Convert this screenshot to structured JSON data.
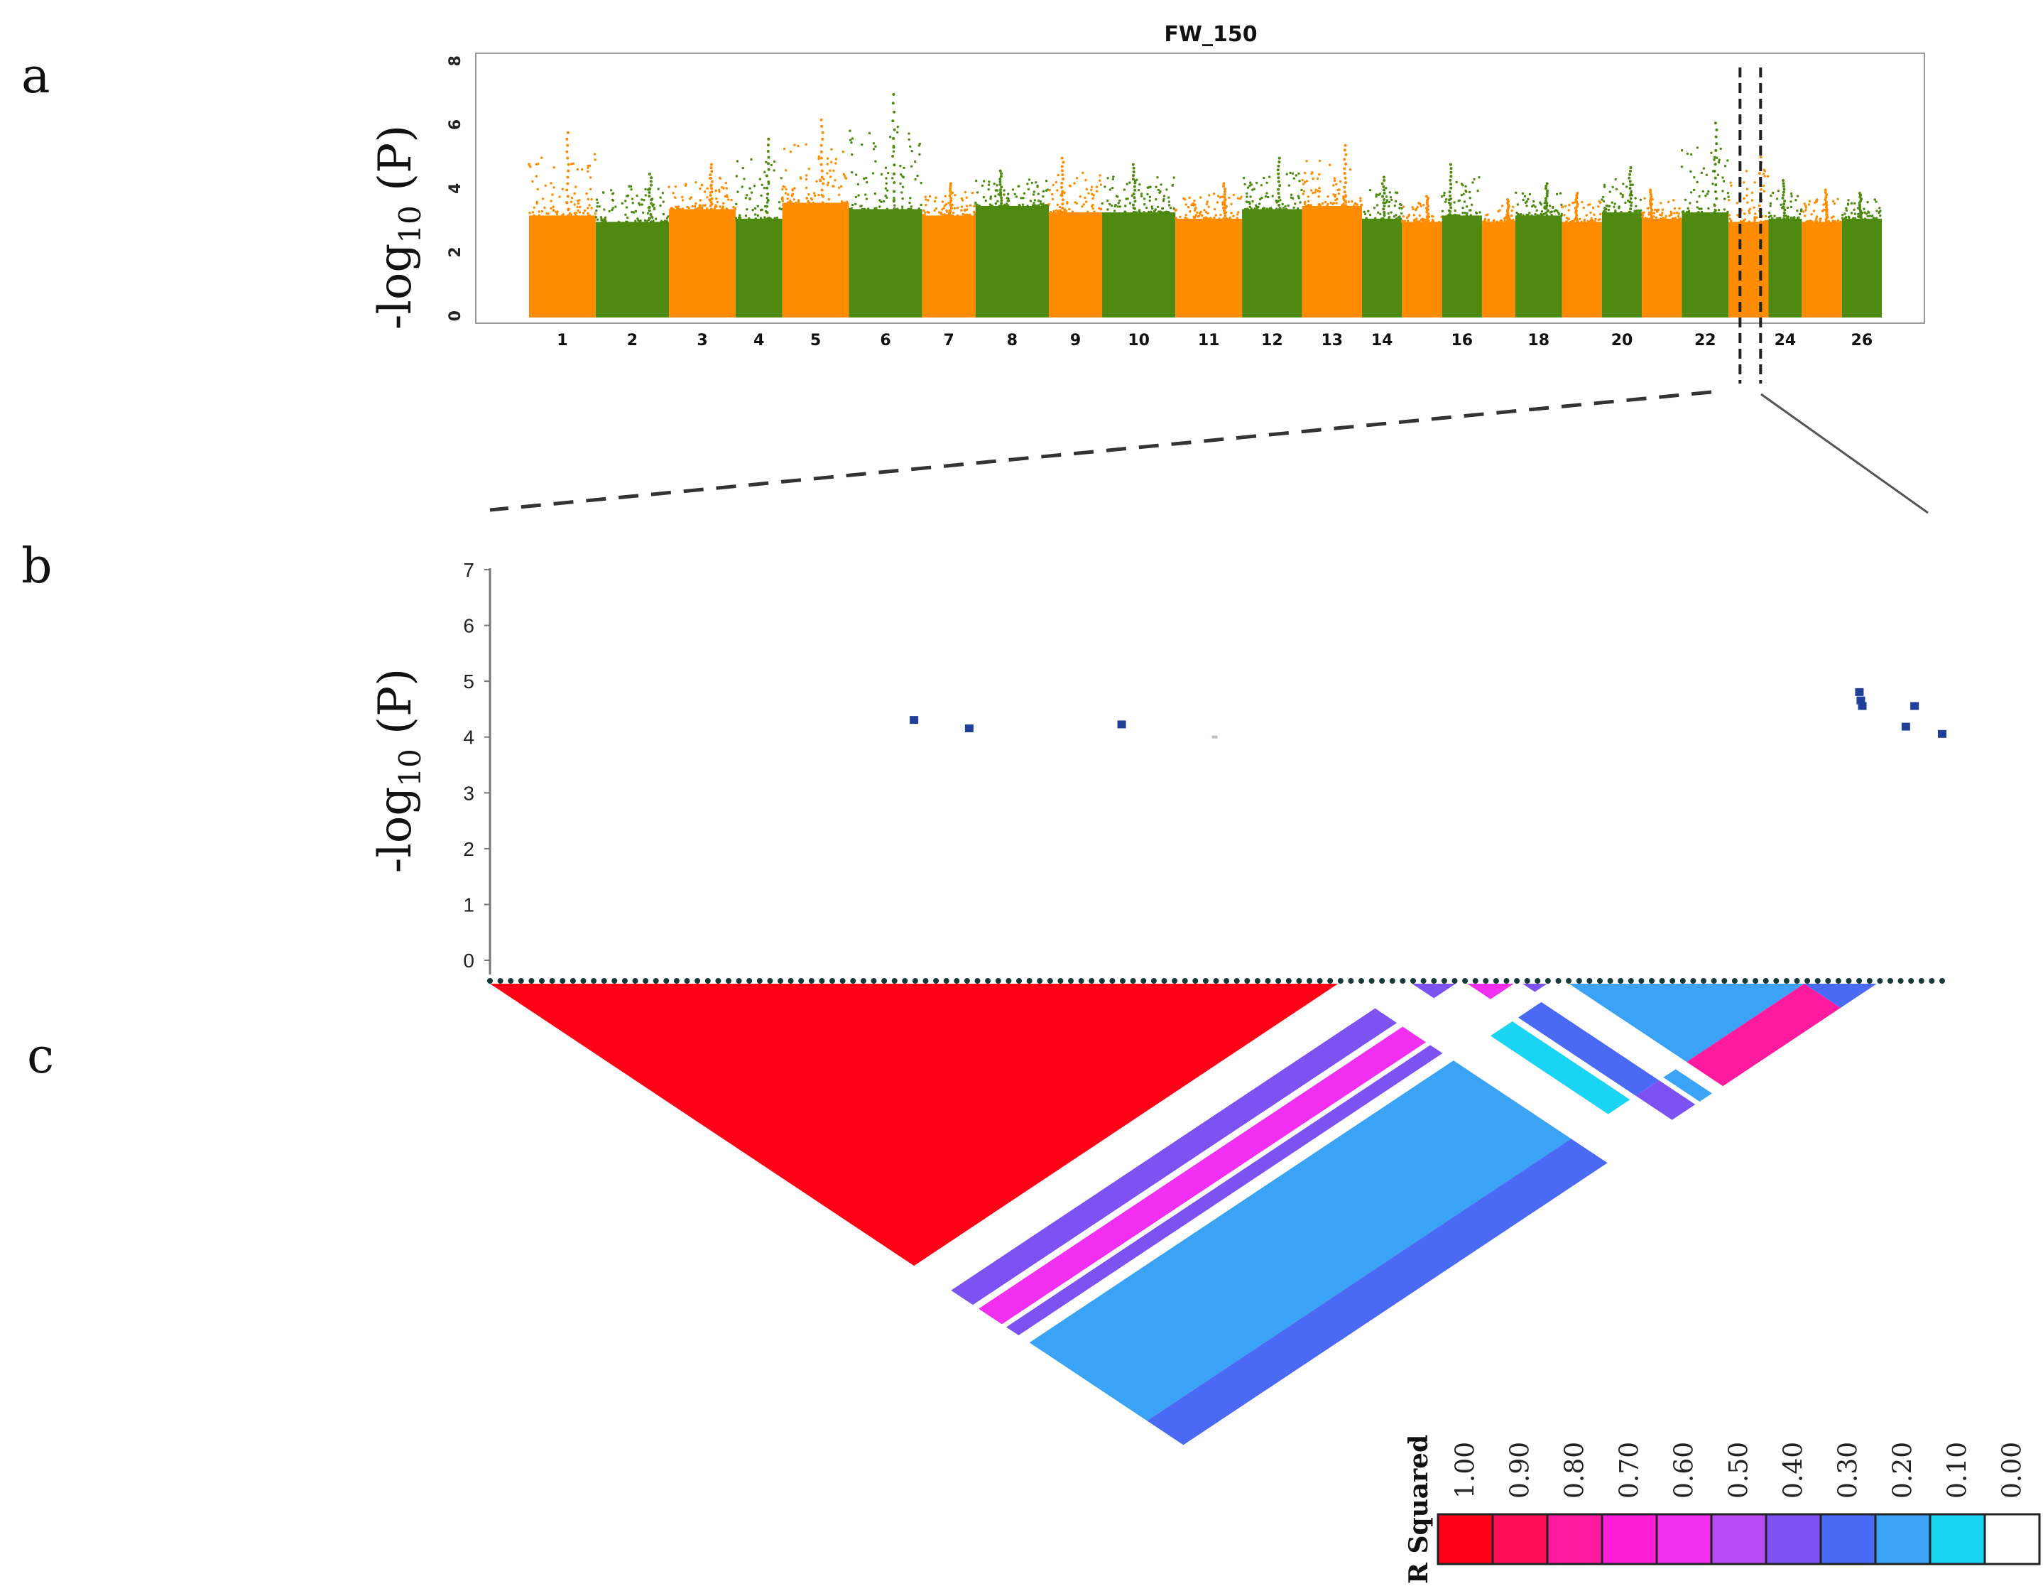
{
  "panels": {
    "a": "a",
    "b": "b",
    "c": "c"
  },
  "chart_data": [
    {
      "type": "scatter",
      "subtype": "manhattan",
      "title": "FW_150",
      "ylabel_prefix": "-log",
      "ylabel_sub": "10",
      "ylabel_suffix": " (P)",
      "ylim": [
        0,
        8
      ],
      "yticks": [
        0,
        2,
        4,
        6,
        8
      ],
      "chromosome_labels": [
        "1",
        "2",
        "3",
        "4",
        "5",
        "6",
        "7",
        "8",
        "9",
        "10",
        "11",
        "12",
        "13",
        "14",
        "16",
        "18",
        "20",
        "22",
        "24",
        "26"
      ],
      "colors": {
        "odd": "#ff8c00",
        "even": "#4f8a10"
      },
      "chromosomes": [
        {
          "chr": 1,
          "base": 3.2,
          "peak": 5.8
        },
        {
          "chr": 2,
          "base": 3.0,
          "peak": 4.5
        },
        {
          "chr": 3,
          "base": 3.4,
          "peak": 4.8
        },
        {
          "chr": 4,
          "base": 3.1,
          "peak": 5.6
        },
        {
          "chr": 5,
          "base": 3.6,
          "peak": 6.2
        },
        {
          "chr": 6,
          "base": 3.4,
          "peak": 7.0
        },
        {
          "chr": 7,
          "base": 3.2,
          "peak": 4.2
        },
        {
          "chr": 8,
          "base": 3.5,
          "peak": 4.6
        },
        {
          "chr": 9,
          "base": 3.3,
          "peak": 5.0
        },
        {
          "chr": 10,
          "base": 3.3,
          "peak": 4.8
        },
        {
          "chr": 11,
          "base": 3.1,
          "peak": 4.2
        },
        {
          "chr": 12,
          "base": 3.4,
          "peak": 5.0
        },
        {
          "chr": 13,
          "base": 3.5,
          "peak": 5.4
        },
        {
          "chr": 14,
          "base": 3.1,
          "peak": 4.4
        },
        {
          "chr": 15,
          "base": 3.0,
          "peak": 3.8
        },
        {
          "chr": 16,
          "base": 3.2,
          "peak": 4.8
        },
        {
          "chr": 17,
          "base": 3.0,
          "peak": 3.7
        },
        {
          "chr": 18,
          "base": 3.2,
          "peak": 4.2
        },
        {
          "chr": 19,
          "base": 3.0,
          "peak": 3.9
        },
        {
          "chr": 20,
          "base": 3.3,
          "peak": 4.7
        },
        {
          "chr": 21,
          "base": 3.1,
          "peak": 4.0
        },
        {
          "chr": 22,
          "base": 3.3,
          "peak": 6.1
        },
        {
          "chr": 23,
          "base": 3.0,
          "peak": 5.2
        },
        {
          "chr": 24,
          "base": 3.1,
          "peak": 4.3
        },
        {
          "chr": 25,
          "base": 3.0,
          "peak": 4.0
        },
        {
          "chr": 26,
          "base": 3.1,
          "peak": 3.9
        }
      ],
      "chromosome_relative_lengths": [
        1.0,
        1.1,
        1.0,
        0.7,
        1.0,
        1.1,
        0.8,
        1.1,
        0.8,
        1.1,
        1.0,
        0.9,
        0.9,
        0.6,
        0.6,
        0.6,
        0.5,
        0.7,
        0.6,
        0.6,
        0.6,
        0.7,
        0.6,
        0.5,
        0.6,
        0.6
      ],
      "highlight_region": {
        "chromosome": 23
      }
    },
    {
      "type": "scatter",
      "subtype": "regional",
      "ylabel_prefix": "-log",
      "ylabel_sub": "10",
      "ylabel_suffix": " (P)",
      "ylim": [
        0,
        7
      ],
      "yticks": [
        0,
        1,
        2,
        3,
        4,
        5,
        6,
        7
      ],
      "xlim": [
        0,
        100
      ],
      "marker_color": "#1f3f99",
      "points": [
        {
          "x": 29.2,
          "y": 4.3
        },
        {
          "x": 33.0,
          "y": 4.15
        },
        {
          "x": 43.5,
          "y": 4.22
        },
        {
          "x": 50.0,
          "y": 3.95
        },
        {
          "x": 94.3,
          "y": 4.8
        },
        {
          "x": 94.4,
          "y": 4.65
        },
        {
          "x": 94.5,
          "y": 4.55
        },
        {
          "x": 97.5,
          "y": 4.18
        },
        {
          "x": 98.1,
          "y": 4.55
        },
        {
          "x": 100.0,
          "y": 4.05
        }
      ]
    },
    {
      "type": "heatmap",
      "subtype": "linkage-disequilibrium",
      "legend_title": "R Squared",
      "legend_values": [
        "1.00",
        "0.90",
        "0.80",
        "0.70",
        "0.60",
        "0.50",
        "0.40",
        "0.30",
        "0.20",
        "0.10",
        "0.00"
      ],
      "legend_colors": [
        "#ff0016",
        "#ff0d55",
        "#ff1a9e",
        "#ff1fd9",
        "#f22ef0",
        "#b94bf5",
        "#7c52f2",
        "#4a6af5",
        "#3aa3f5",
        "#19d4f2",
        "#ffffff"
      ],
      "blocks": [
        {
          "from": 0.0,
          "to": 0.584,
          "r2": 1.0
        },
        {
          "from": 0.635,
          "to": 0.665,
          "r2": 0.4
        },
        {
          "from": 0.673,
          "to": 0.705,
          "r2": 0.6
        },
        {
          "from": 0.711,
          "to": 0.728,
          "r2": 0.4
        },
        {
          "from": 0.743,
          "to": 0.905,
          "r2": 0.25
        },
        {
          "from": 0.905,
          "to": 0.955,
          "r2": 0.3
        }
      ]
    }
  ]
}
